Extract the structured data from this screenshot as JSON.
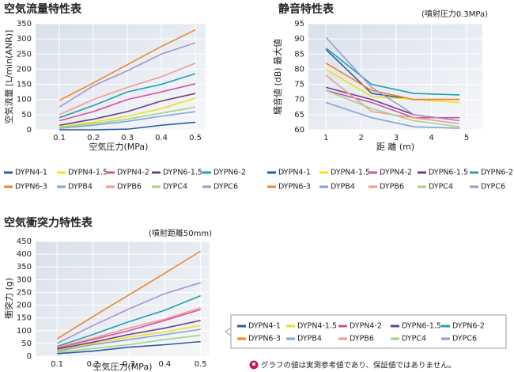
{
  "chart_data": [
    {
      "type": "line",
      "title": "空気流量特性表",
      "x_label": "空気圧力(MPa)",
      "y_label": "空気流量 [L/min(ANR)]",
      "x": [
        0.1,
        0.2,
        0.3,
        0.4,
        0.5
      ],
      "xlim": [
        0.03,
        0.53
      ],
      "xticks": [
        0.1,
        0.2,
        0.3,
        0.4,
        0.5
      ],
      "ylim": [
        0,
        350
      ],
      "yticks": [
        0,
        50,
        100,
        150,
        200,
        250,
        300,
        350
      ],
      "grid": true,
      "series": [
        {
          "name": "DYPN4-1",
          "color": "#2a5c9e",
          "values": [
            0,
            0,
            2,
            15,
            25
          ]
        },
        {
          "name": "DYPN4-1.5",
          "color": "#ece21c",
          "values": [
            10,
            25,
            45,
            70,
            105
          ]
        },
        {
          "name": "DYPN4-2",
          "color": "#d24f9e",
          "values": [
            30,
            60,
            100,
            125,
            152
          ]
        },
        {
          "name": "DYPN6-1.5",
          "color": "#6a3f8c",
          "values": [
            15,
            35,
            60,
            95,
            120
          ]
        },
        {
          "name": "DYPN6-2",
          "color": "#1ea2b0",
          "values": [
            40,
            80,
            125,
            150,
            185
          ]
        },
        {
          "name": "DYPN6-3",
          "color": "#ef8431",
          "values": [
            97,
            155,
            215,
            275,
            330
          ]
        },
        {
          "name": "DYPB4",
          "color": "#84a3d8",
          "values": [
            5,
            15,
            28,
            45,
            60
          ]
        },
        {
          "name": "DYPB6",
          "color": "#f19a92",
          "values": [
            50,
            100,
            140,
            175,
            220
          ]
        },
        {
          "name": "DYPC4",
          "color": "#a6d382",
          "values": [
            8,
            20,
            35,
            55,
            75
          ]
        },
        {
          "name": "DYPC6",
          "color": "#a495d2",
          "values": [
            75,
            145,
            195,
            250,
            287
          ]
        }
      ]
    },
    {
      "type": "line",
      "title": "静音特性表",
      "subtitle": "(噴射圧力0.3MPa)",
      "x_label": "距 離 (m)",
      "y_label": "騒音値 (dB) 最大値",
      "x": [
        1,
        2.3,
        3.5,
        4.8
      ],
      "xlim": [
        0.5,
        5.45
      ],
      "xticks": [
        1,
        2,
        3,
        4,
        5
      ],
      "ylim": [
        60,
        95
      ],
      "yticks": [
        60,
        65,
        70,
        75,
        80,
        85,
        90,
        95
      ],
      "grid": true,
      "series": [
        {
          "name": "DYPN4-1",
          "color": "#2a5c9e",
          "values": [
            86.5,
            72,
            70,
            70
          ]
        },
        {
          "name": "DYPN4-1.5",
          "color": "#ece21c",
          "values": [
            80,
            71,
            70,
            69
          ]
        },
        {
          "name": "DYPN4-2",
          "color": "#d24f9e",
          "values": [
            73,
            69,
            64,
            64
          ]
        },
        {
          "name": "DYPN6-1.5",
          "color": "#6a3f8c",
          "values": [
            74,
            70,
            65,
            63
          ]
        },
        {
          "name": "DYPN6-2",
          "color": "#1ea2b0",
          "values": [
            87,
            75,
            72,
            71.5
          ]
        },
        {
          "name": "DYPN6-3",
          "color": "#ef8431",
          "values": [
            82,
            73,
            70,
            70
          ]
        },
        {
          "name": "DYPB4",
          "color": "#84a3d8",
          "values": [
            69,
            64,
            61,
            60.5
          ]
        },
        {
          "name": "DYPB6",
          "color": "#f19a92",
          "values": [
            78,
            66,
            64,
            62
          ]
        },
        {
          "name": "DYPC4",
          "color": "#a6d382",
          "values": [
            73,
            67,
            63,
            61
          ]
        },
        {
          "name": "DYPC6",
          "color": "#a495d2",
          "values": [
            90.5,
            74,
            65,
            63
          ]
        }
      ]
    },
    {
      "type": "line",
      "title": "空気衝突力特性表",
      "subtitle": "(噴射距離50mm)",
      "x_label": "空気圧力(MPa)",
      "y_label": "衝突力 (g)",
      "x": [
        0.1,
        0.2,
        0.3,
        0.4,
        0.5
      ],
      "xlim": [
        0.04,
        0.525
      ],
      "xticks": [
        0.1,
        0.2,
        0.3,
        0.4,
        0.5
      ],
      "ylim": [
        0,
        450
      ],
      "yticks": [
        0,
        50,
        100,
        150,
        200,
        250,
        300,
        350,
        400,
        450
      ],
      "grid": true,
      "series": [
        {
          "name": "DYPN4-1",
          "color": "#2a5c9e",
          "values": [
            10,
            20,
            35,
            45,
            57
          ]
        },
        {
          "name": "DYPN4-1.5",
          "color": "#ece21c",
          "values": [
            25,
            50,
            75,
            95,
            120
          ]
        },
        {
          "name": "DYPN4-2",
          "color": "#d24f9e",
          "values": [
            32,
            65,
            100,
            140,
            183
          ]
        },
        {
          "name": "DYPN6-1.5",
          "color": "#6a3f8c",
          "values": [
            28,
            55,
            85,
            110,
            140
          ]
        },
        {
          "name": "DYPN6-2",
          "color": "#1ea2b0",
          "values": [
            38,
            85,
            135,
            180,
            237
          ]
        },
        {
          "name": "DYPN6-3",
          "color": "#ef8431",
          "values": [
            68,
            155,
            240,
            325,
            412
          ]
        },
        {
          "name": "DYPB4",
          "color": "#84a3d8",
          "values": [
            20,
            45,
            65,
            85,
            105
          ]
        },
        {
          "name": "DYPB6",
          "color": "#f19a92",
          "values": [
            35,
            70,
            110,
            145,
            190
          ]
        },
        {
          "name": "DYPC4",
          "color": "#a6d382",
          "values": [
            15,
            30,
            45,
            65,
            82
          ]
        },
        {
          "name": "DYPC6",
          "color": "#a495d2",
          "values": [
            50,
            120,
            185,
            245,
            288
          ]
        }
      ]
    }
  ],
  "note": "グラフの値は実測参考値であり、保証値ではありません。"
}
